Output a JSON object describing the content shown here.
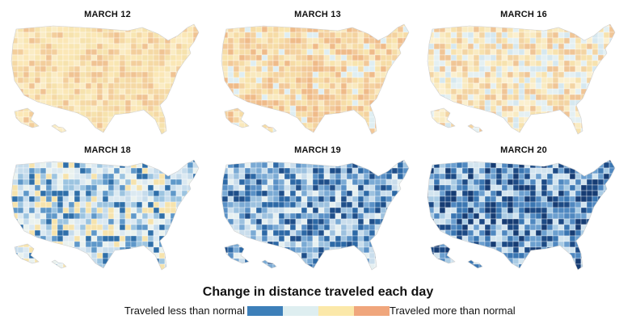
{
  "panels": [
    {
      "title": "MARCH 12",
      "palette": [
        "#f8e6b2",
        "#fbe7b6",
        "#f5d9a5",
        "#f0c393",
        "#f6e2ad",
        "#f3ce9c",
        "#faecc4"
      ]
    },
    {
      "title": "MARCH 13",
      "palette": [
        "#f8e4ae",
        "#f6dca6",
        "#f2c898",
        "#efbb89",
        "#f9e9be",
        "#f4d29f",
        "#dfeef2"
      ]
    },
    {
      "title": "MARCH 16",
      "palette": [
        "#f9ebc2",
        "#f7e2ae",
        "#e4f0f2",
        "#f3d4a3",
        "#d6e8ef",
        "#fbf0cf",
        "#f0c596"
      ]
    },
    {
      "title": "MARCH 18",
      "palette": [
        "#c6dcec",
        "#9cc4e0",
        "#5f98c9",
        "#dbe9f1",
        "#eaf2ef",
        "#2f6fa9",
        "#f6e3ad"
      ]
    },
    {
      "title": "MARCH 19",
      "palette": [
        "#9cc1df",
        "#5a91c6",
        "#2d69a6",
        "#c9ddec",
        "#1f4f8a",
        "#e6f0f1",
        "#7aaad4"
      ]
    },
    {
      "title": "MARCH 20",
      "palette": [
        "#6b9fcf",
        "#3a76b2",
        "#1c4a85",
        "#a9cbe4",
        "#163c73",
        "#d2e4ef",
        "#4f88c0"
      ]
    }
  ],
  "legend": {
    "title": "Change in distance traveled each day",
    "left_label": "Traveled less than normal",
    "right_label": "Traveled more than normal",
    "colors": [
      "#3d7fb9",
      "#deeef0",
      "#fbe8a9",
      "#f0a67c"
    ]
  }
}
